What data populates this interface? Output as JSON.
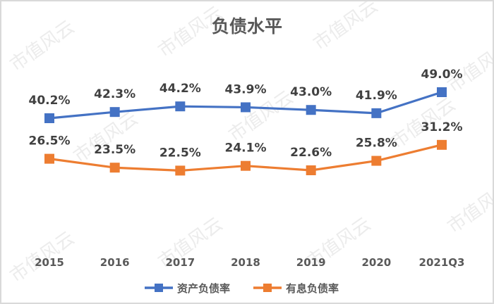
{
  "title": "负债水平",
  "watermark": "市值风云",
  "colors": {
    "asset_liability": "#4472C4",
    "interest_liability": "#ED7D31",
    "text": "#404040",
    "axis_text": "#595959",
    "border": "#d9d9d9"
  },
  "chart_data": {
    "type": "line",
    "title": "负债水平",
    "categories": [
      "2015",
      "2016",
      "2017",
      "2018",
      "2019",
      "2020",
      "2021Q3"
    ],
    "series": [
      {
        "name": "资产负债率",
        "values": [
          40.2,
          42.3,
          44.2,
          43.9,
          43.0,
          41.9,
          49.0
        ],
        "labels": [
          "40.2%",
          "42.3%",
          "44.2%",
          "43.9%",
          "43.0%",
          "41.9%",
          "49.0%"
        ],
        "color": "#4472C4",
        "marker": "square"
      },
      {
        "name": "有息负债率",
        "values": [
          26.5,
          23.5,
          22.5,
          24.1,
          22.6,
          25.8,
          31.2
        ],
        "labels": [
          "26.5%",
          "23.5%",
          "22.5%",
          "24.1%",
          "22.6%",
          "25.8%",
          "31.2%"
        ],
        "color": "#ED7D31",
        "marker": "square"
      }
    ],
    "xlabel": "",
    "ylabel": "",
    "grid": false,
    "legend_position": "bottom",
    "y_axis_visible": false
  },
  "legend": [
    {
      "label": "资产负债率",
      "color": "#4472C4"
    },
    {
      "label": "有息负债率",
      "color": "#ED7D31"
    }
  ]
}
